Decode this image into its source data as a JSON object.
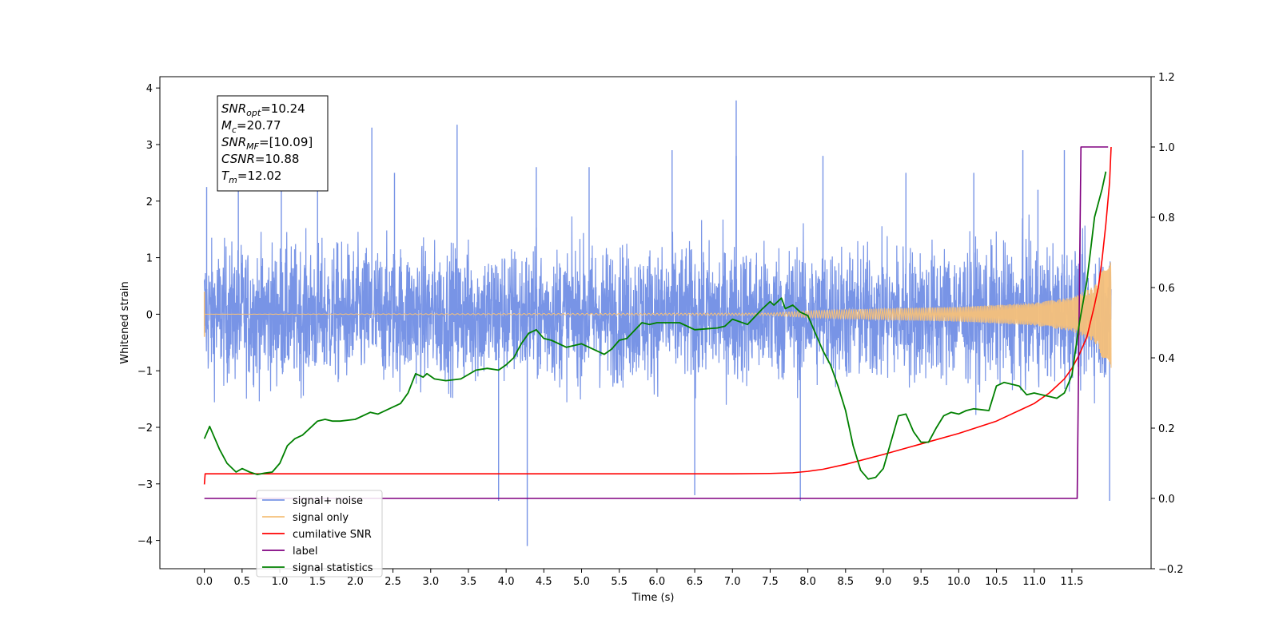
{
  "chart_data": {
    "type": "line",
    "xlabel": "Time (s)",
    "ylabel": "Whitened strain",
    "xlim": [
      -0.59,
      12.55
    ],
    "ylim": [
      -4.5,
      4.2
    ],
    "y2lim": [
      -0.2,
      1.2
    ],
    "xticks": [
      "0.0",
      "0.5",
      "1.0",
      "1.5",
      "2.0",
      "2.5",
      "3.0",
      "3.5",
      "4.0",
      "4.5",
      "5.0",
      "5.5",
      "6.0",
      "6.5",
      "7.0",
      "7.5",
      "8.0",
      "8.5",
      "9.0",
      "9.5",
      "10.0",
      "10.5",
      "11.0",
      "11.5"
    ],
    "yticks": [
      "4",
      "3",
      "2",
      "1",
      "0",
      "−1",
      "−2",
      "−3",
      "−4"
    ],
    "y2ticks": [
      "1.2",
      "1.0",
      "0.8",
      "0.6",
      "0.4",
      "0.2",
      "0.0",
      "−0.2"
    ],
    "annotation": {
      "lines": [
        {
          "base": "SNR",
          "sub": "opt",
          "value": "=10.24"
        },
        {
          "base": "M",
          "sub": "c",
          "value": "=20.77"
        },
        {
          "base": "SNR",
          "sub": "MF",
          "value": "=[10.09]"
        },
        {
          "base": "CSNR",
          "sub": "",
          "value": "=10.88"
        },
        {
          "base": "T",
          "sub": "m",
          "value": "=12.02"
        }
      ]
    },
    "legend": {
      "placement": "lower-left",
      "entries": [
        {
          "label": "signal+ noise",
          "color": "#7894e6"
        },
        {
          "label": "signal only",
          "color": "#f5c07a"
        },
        {
          "label": "cumilative SNR",
          "color": "#ff0000"
        },
        {
          "label": "label",
          "color": "#800080"
        },
        {
          "label": "signal statistics",
          "color": "#008000"
        }
      ]
    },
    "series": [
      {
        "name": "signal+ noise",
        "axis": "left",
        "color": "#7894e6",
        "style": "dense noisy trace, envelope roughly ±2.3, occasional spikes to ~3.8 and ~-4.1",
        "x_range": [
          0.0,
          12.02
        ],
        "peaks": [
          [
            0.03,
            2.25
          ],
          [
            0.45,
            2.3
          ],
          [
            1.02,
            2.5
          ],
          [
            1.5,
            2.2
          ],
          [
            2.22,
            3.3
          ],
          [
            2.52,
            2.5
          ],
          [
            3.35,
            3.35
          ],
          [
            3.9,
            -3.3
          ],
          [
            4.28,
            -4.1
          ],
          [
            4.4,
            2.6
          ],
          [
            5.1,
            2.6
          ],
          [
            6.2,
            2.9
          ],
          [
            6.5,
            -3.2
          ],
          [
            7.05,
            3.78
          ],
          [
            7.05,
            2.8
          ],
          [
            7.9,
            -3.3
          ],
          [
            8.2,
            2.8
          ],
          [
            9.3,
            2.5
          ],
          [
            10.2,
            2.5
          ],
          [
            10.85,
            2.9
          ],
          [
            11.05,
            2.2
          ],
          [
            11.4,
            2.9
          ],
          [
            12.0,
            -3.3
          ]
        ]
      },
      {
        "name": "signal only",
        "axis": "left",
        "color": "#f5c07a",
        "style": "chirp: flat near 0 until ~7.5 s, then growing oscillation",
        "amplitude_points": [
          [
            0.0,
            0.0
          ],
          [
            7.5,
            0.02
          ],
          [
            8.0,
            0.06
          ],
          [
            9.0,
            0.1
          ],
          [
            10.0,
            0.13
          ],
          [
            11.0,
            0.2
          ],
          [
            11.5,
            0.3
          ],
          [
            11.8,
            0.5
          ],
          [
            11.95,
            0.9
          ],
          [
            12.02,
            1.1
          ]
        ]
      },
      {
        "name": "cumilative SNR",
        "axis": "right",
        "color": "#ff0000",
        "x": [
          0.0,
          0.01,
          0.5,
          2.0,
          4.0,
          6.0,
          7.0,
          7.5,
          7.8,
          8.0,
          8.2,
          8.5,
          9.0,
          9.5,
          10.0,
          10.5,
          10.8,
          11.0,
          11.2,
          11.4,
          11.5,
          11.6,
          11.7,
          11.8,
          11.85,
          11.9,
          11.95,
          12.0,
          12.02
        ],
        "y": [
          0.04,
          0.07,
          0.07,
          0.07,
          0.07,
          0.07,
          0.07,
          0.071,
          0.073,
          0.077,
          0.083,
          0.097,
          0.125,
          0.155,
          0.185,
          0.22,
          0.25,
          0.27,
          0.3,
          0.34,
          0.37,
          0.41,
          0.46,
          0.55,
          0.6,
          0.68,
          0.78,
          0.9,
          1.0
        ]
      },
      {
        "name": "label",
        "axis": "right",
        "color": "#800080",
        "x": [
          0.0,
          11.57,
          11.62,
          11.98
        ],
        "y": [
          0.0,
          0.0,
          1.0,
          1.0
        ]
      },
      {
        "name": "signal statistics",
        "axis": "right",
        "color": "#008000",
        "x": [
          0.0,
          0.07,
          0.2,
          0.3,
          0.42,
          0.5,
          0.6,
          0.7,
          0.8,
          0.9,
          1.0,
          1.1,
          1.2,
          1.3,
          1.5,
          1.6,
          1.7,
          1.8,
          2.0,
          2.2,
          2.3,
          2.5,
          2.6,
          2.7,
          2.8,
          2.9,
          2.95,
          3.05,
          3.2,
          3.4,
          3.6,
          3.75,
          3.9,
          4.0,
          4.1,
          4.2,
          4.3,
          4.4,
          4.5,
          4.6,
          4.8,
          5.0,
          5.3,
          5.4,
          5.5,
          5.6,
          5.8,
          5.9,
          6.0,
          6.3,
          6.5,
          6.8,
          6.9,
          7.0,
          7.2,
          7.4,
          7.5,
          7.55,
          7.65,
          7.7,
          7.8,
          7.9,
          8.0,
          8.1,
          8.2,
          8.3,
          8.4,
          8.5,
          8.6,
          8.7,
          8.8,
          8.9,
          9.0,
          9.1,
          9.2,
          9.3,
          9.4,
          9.5,
          9.6,
          9.7,
          9.8,
          9.9,
          10.0,
          10.1,
          10.2,
          10.4,
          10.5,
          10.6,
          10.7,
          10.8,
          10.9,
          11.0,
          11.1,
          11.2,
          11.3,
          11.4,
          11.5,
          11.6,
          11.7,
          11.8,
          11.9,
          11.95
        ],
        "y": [
          0.17,
          0.205,
          0.14,
          0.1,
          0.075,
          0.085,
          0.075,
          0.068,
          0.072,
          0.075,
          0.1,
          0.15,
          0.17,
          0.18,
          0.22,
          0.225,
          0.22,
          0.22,
          0.225,
          0.245,
          0.24,
          0.26,
          0.27,
          0.3,
          0.355,
          0.345,
          0.355,
          0.34,
          0.335,
          0.34,
          0.365,
          0.37,
          0.365,
          0.38,
          0.4,
          0.44,
          0.47,
          0.48,
          0.455,
          0.45,
          0.43,
          0.44,
          0.41,
          0.425,
          0.45,
          0.455,
          0.5,
          0.495,
          0.5,
          0.5,
          0.48,
          0.485,
          0.49,
          0.51,
          0.495,
          0.54,
          0.56,
          0.55,
          0.57,
          0.54,
          0.55,
          0.53,
          0.52,
          0.47,
          0.42,
          0.38,
          0.32,
          0.25,
          0.15,
          0.08,
          0.055,
          0.06,
          0.085,
          0.16,
          0.235,
          0.24,
          0.19,
          0.16,
          0.16,
          0.2,
          0.235,
          0.245,
          0.24,
          0.25,
          0.255,
          0.25,
          0.32,
          0.33,
          0.325,
          0.32,
          0.295,
          0.3,
          0.295,
          0.29,
          0.285,
          0.3,
          0.35,
          0.5,
          0.62,
          0.8,
          0.88,
          0.93
        ]
      }
    ]
  }
}
